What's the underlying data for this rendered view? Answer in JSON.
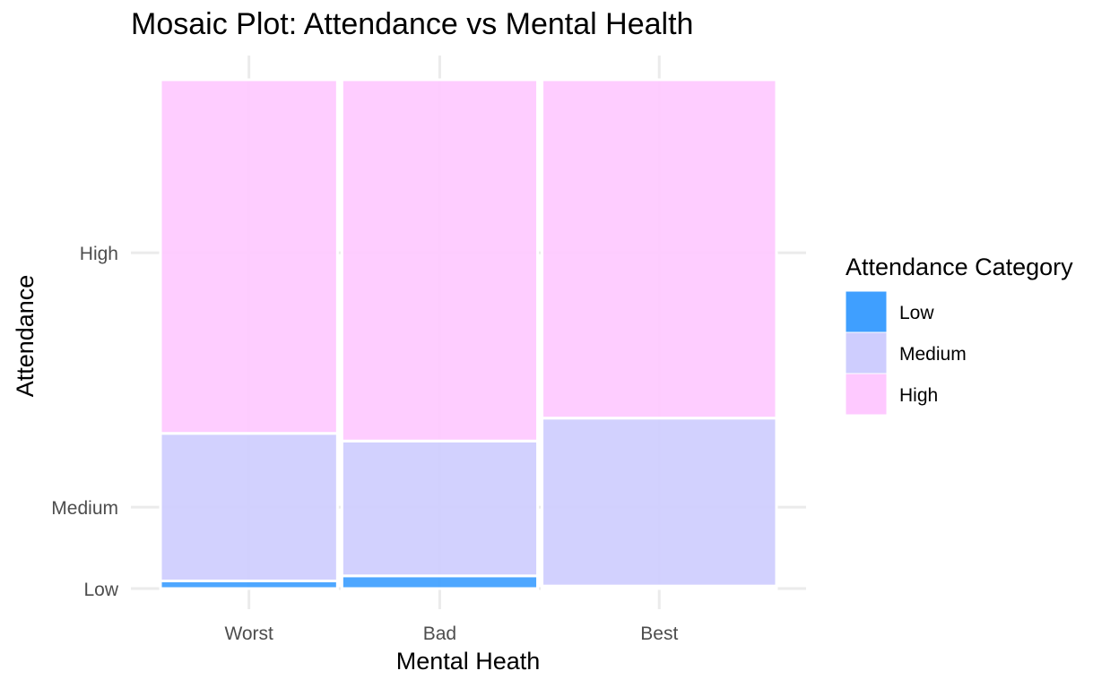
{
  "chart_data": {
    "type": "mosaic",
    "title": "Mosaic Plot: Attendance vs Mental Health",
    "xlabel": "Mental Heath",
    "ylabel": "Attendance",
    "categories": [
      "Worst",
      "Bad",
      "Best"
    ],
    "column_widths": [
      0.274,
      0.303,
      0.363
    ],
    "y_tick_labels": [
      "Low",
      "Medium",
      "High"
    ],
    "y_tick_positions": [
      0.0,
      0.16,
      0.66
    ],
    "series": [
      {
        "name": "Low",
        "color": "#3f9fff",
        "values": [
          0.015,
          0.025,
          0.005
        ]
      },
      {
        "name": "Medium",
        "color": "#cecdfe",
        "values": [
          0.29,
          0.265,
          0.33
        ]
      },
      {
        "name": "High",
        "color": "#fec9ff",
        "values": [
          0.695,
          0.71,
          0.665
        ]
      }
    ],
    "grid": true,
    "legend": {
      "title": "Attendance Category",
      "position": "right"
    }
  }
}
